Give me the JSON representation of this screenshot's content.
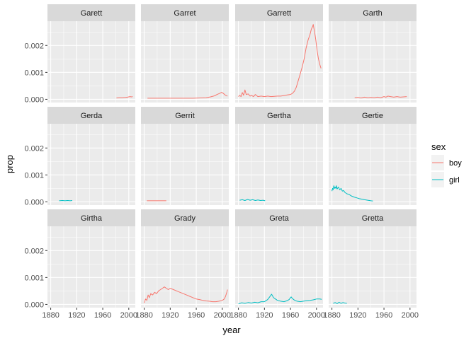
{
  "chart_data": {
    "type": "line",
    "facet_layout": {
      "rows": 3,
      "cols": 4
    },
    "xlabel": "year",
    "ylabel": "prop",
    "xlim": [
      1875,
      2010
    ],
    "ylim": [
      -0.00012,
      0.0029
    ],
    "x_ticks": [
      1880,
      1920,
      1960,
      2000
    ],
    "x_tick_labels": [
      "1880",
      "1920",
      "1960",
      "2000"
    ],
    "y_ticks": [
      0,
      0.001,
      0.002
    ],
    "y_tick_labels": [
      "0.000",
      "0.001",
      "0.002"
    ],
    "grid": true,
    "legend": {
      "title": "sex",
      "placement": "right",
      "entries": [
        {
          "label": "boy",
          "color": "#F8766D"
        },
        {
          "label": "girl",
          "color": "#00BFC4"
        }
      ]
    },
    "colors": {
      "boy": "#F8766D",
      "girl": "#00BFC4",
      "panel_bg": "#EBEBEB",
      "strip_bg": "#D9D9D9",
      "grid": "#FFFFFF"
    },
    "panels": [
      {
        "title": "Garett",
        "series": [
          {
            "sex": "boy",
            "points": [
              [
                1981,
                5e-05
              ],
              [
                1985,
                6e-05
              ],
              [
                1990,
                6e-05
              ],
              [
                1995,
                7e-05
              ],
              [
                1998,
                8e-05
              ],
              [
                2000,
                9e-05
              ],
              [
                2002,
                0.0001
              ],
              [
                2004,
                9e-05
              ],
              [
                2006,
                0.0001
              ]
            ]
          }
        ]
      },
      {
        "title": "Garret",
        "series": [
          {
            "sex": "boy",
            "points": [
              [
                1885,
                4e-05
              ],
              [
                1900,
                4e-05
              ],
              [
                1920,
                4e-05
              ],
              [
                1940,
                4e-05
              ],
              [
                1955,
                4e-05
              ],
              [
                1965,
                5e-05
              ],
              [
                1975,
                6e-05
              ],
              [
                1982,
                9e-05
              ],
              [
                1988,
                0.00013
              ],
              [
                1992,
                0.00018
              ],
              [
                1996,
                0.00022
              ],
              [
                1999,
                0.00026
              ],
              [
                2001,
                0.00023
              ],
              [
                2003,
                0.00019
              ],
              [
                2005,
                0.00015
              ],
              [
                2008,
                0.00012
              ]
            ]
          }
        ]
      },
      {
        "title": "Garrett",
        "series": [
          {
            "sex": "boy",
            "points": [
              [
                1880,
                0.0001
              ],
              [
                1882,
                0.00015
              ],
              [
                1884,
                0.0001
              ],
              [
                1886,
                0.00025
              ],
              [
                1888,
                0.00015
              ],
              [
                1890,
                0.00035
              ],
              [
                1892,
                0.00018
              ],
              [
                1895,
                0.0002
              ],
              [
                1898,
                0.00012
              ],
              [
                1900,
                0.00015
              ],
              [
                1903,
                0.0001
              ],
              [
                1906,
                0.00018
              ],
              [
                1910,
                0.0001
              ],
              [
                1915,
                0.00012
              ],
              [
                1920,
                0.0001
              ],
              [
                1925,
                0.00012
              ],
              [
                1930,
                0.0001
              ],
              [
                1935,
                0.00011
              ],
              [
                1940,
                0.00012
              ],
              [
                1945,
                0.00012
              ],
              [
                1950,
                0.00014
              ],
              [
                1955,
                0.00016
              ],
              [
                1960,
                0.00018
              ],
              [
                1963,
                0.00022
              ],
              [
                1966,
                0.0003
              ],
              [
                1969,
                0.00045
              ],
              [
                1972,
                0.0007
              ],
              [
                1975,
                0.00095
              ],
              [
                1978,
                0.0012
              ],
              [
                1981,
                0.0015
              ],
              [
                1984,
                0.0019
              ],
              [
                1987,
                0.0022
              ],
              [
                1990,
                0.0024
              ],
              [
                1992,
                0.0026
              ],
              [
                1994,
                0.0027
              ],
              [
                1995,
                0.00278
              ],
              [
                1997,
                0.0025
              ],
              [
                1999,
                0.0022
              ],
              [
                2001,
                0.0018
              ],
              [
                2003,
                0.0015
              ],
              [
                2005,
                0.0013
              ],
              [
                2007,
                0.00115
              ]
            ]
          }
        ]
      },
      {
        "title": "Garth",
        "series": [
          {
            "sex": "boy",
            "points": [
              [
                1915,
                6e-05
              ],
              [
                1920,
                7e-05
              ],
              [
                1925,
                5e-05
              ],
              [
                1930,
                8e-05
              ],
              [
                1935,
                6e-05
              ],
              [
                1940,
                7e-05
              ],
              [
                1945,
                6e-05
              ],
              [
                1950,
                8e-05
              ],
              [
                1955,
                6e-05
              ],
              [
                1960,
                0.0001
              ],
              [
                1963,
                8e-05
              ],
              [
                1966,
                0.00012
              ],
              [
                1970,
                0.0001
              ],
              [
                1975,
                8e-05
              ],
              [
                1980,
                0.0001
              ],
              [
                1985,
                8e-05
              ],
              [
                1990,
                9e-05
              ],
              [
                1995,
                0.0001
              ]
            ]
          }
        ]
      },
      {
        "title": "Gerda",
        "series": [
          {
            "sex": "girl",
            "points": [
              [
                1893,
                4e-05
              ],
              [
                1898,
                5e-05
              ],
              [
                1902,
                4e-05
              ],
              [
                1906,
                5e-05
              ],
              [
                1910,
                4e-05
              ],
              [
                1913,
                5e-05
              ]
            ]
          }
        ]
      },
      {
        "title": "Gerrit",
        "series": [
          {
            "sex": "boy",
            "points": [
              [
                1884,
                4e-05
              ],
              [
                1890,
                4e-05
              ],
              [
                1896,
                4e-05
              ],
              [
                1902,
                4e-05
              ],
              [
                1908,
                4e-05
              ],
              [
                1914,
                4e-05
              ]
            ]
          }
        ]
      },
      {
        "title": "Gertha",
        "series": [
          {
            "sex": "girl",
            "points": [
              [
                1882,
                6e-05
              ],
              [
                1886,
                8e-05
              ],
              [
                1890,
                5e-05
              ],
              [
                1894,
                9e-05
              ],
              [
                1898,
                6e-05
              ],
              [
                1902,
                8e-05
              ],
              [
                1906,
                5e-05
              ],
              [
                1910,
                7e-05
              ],
              [
                1914,
                5e-05
              ],
              [
                1918,
                6e-05
              ],
              [
                1921,
                4e-05
              ]
            ]
          }
        ]
      },
      {
        "title": "Gertie",
        "series": [
          {
            "sex": "girl",
            "points": [
              [
                1880,
                0.0004
              ],
              [
                1881,
                0.0005
              ],
              [
                1882,
                0.00045
              ],
              [
                1883,
                0.0006
              ],
              [
                1884,
                0.0005
              ],
              [
                1885,
                0.00055
              ],
              [
                1886,
                0.0005
              ],
              [
                1887,
                0.0006
              ],
              [
                1888,
                0.00048
              ],
              [
                1890,
                0.00055
              ],
              [
                1892,
                0.00045
              ],
              [
                1894,
                0.0005
              ],
              [
                1896,
                0.0004
              ],
              [
                1898,
                0.00042
              ],
              [
                1900,
                0.00035
              ],
              [
                1903,
                0.0003
              ],
              [
                1906,
                0.00028
              ],
              [
                1910,
                0.00022
              ],
              [
                1914,
                0.00018
              ],
              [
                1918,
                0.00015
              ],
              [
                1922,
                0.00012
              ],
              [
                1926,
                0.0001
              ],
              [
                1930,
                8e-05
              ],
              [
                1935,
                6e-05
              ],
              [
                1940,
                4e-05
              ],
              [
                1943,
                3e-05
              ]
            ]
          }
        ]
      },
      {
        "title": "Girtha",
        "series": []
      },
      {
        "title": "Grady",
        "series": [
          {
            "sex": "boy",
            "points": [
              [
                1880,
                5e-05
              ],
              [
                1882,
                0.0002
              ],
              [
                1884,
                0.00015
              ],
              [
                1886,
                0.00035
              ],
              [
                1888,
                0.00025
              ],
              [
                1890,
                0.0004
              ],
              [
                1893,
                0.00035
              ],
              [
                1896,
                0.00045
              ],
              [
                1899,
                0.0004
              ],
              [
                1902,
                0.0005
              ],
              [
                1905,
                0.00055
              ],
              [
                1908,
                0.0006
              ],
              [
                1911,
                0.00065
              ],
              [
                1914,
                0.0006
              ],
              [
                1917,
                0.00055
              ],
              [
                1920,
                0.0006
              ],
              [
                1925,
                0.00055
              ],
              [
                1930,
                0.0005
              ],
              [
                1935,
                0.00045
              ],
              [
                1940,
                0.0004
              ],
              [
                1945,
                0.00035
              ],
              [
                1950,
                0.0003
              ],
              [
                1955,
                0.00025
              ],
              [
                1960,
                0.0002
              ],
              [
                1965,
                0.00018
              ],
              [
                1970,
                0.00015
              ],
              [
                1975,
                0.00013
              ],
              [
                1980,
                0.00012
              ],
              [
                1985,
                0.0001
              ],
              [
                1990,
                0.0001
              ],
              [
                1995,
                0.00012
              ],
              [
                2000,
                0.00015
              ],
              [
                2003,
                0.0002
              ],
              [
                2005,
                0.0003
              ],
              [
                2007,
                0.00045
              ],
              [
                2008,
                0.00055
              ]
            ]
          }
        ]
      },
      {
        "title": "Greta",
        "series": [
          {
            "sex": "girl",
            "points": [
              [
                1880,
                2e-05
              ],
              [
                1885,
                6e-05
              ],
              [
                1890,
                4e-05
              ],
              [
                1895,
                7e-05
              ],
              [
                1900,
                5e-05
              ],
              [
                1905,
                8e-05
              ],
              [
                1910,
                6e-05
              ],
              [
                1915,
                0.0001
              ],
              [
                1920,
                0.0001
              ],
              [
                1925,
                0.00018
              ],
              [
                1928,
                0.00028
              ],
              [
                1931,
                0.00038
              ],
              [
                1934,
                0.00025
              ],
              [
                1937,
                0.0002
              ],
              [
                1940,
                0.00015
              ],
              [
                1945,
                0.00012
              ],
              [
                1950,
                0.0001
              ],
              [
                1955,
                0.00014
              ],
              [
                1958,
                0.00018
              ],
              [
                1961,
                0.00028
              ],
              [
                1963,
                0.00022
              ],
              [
                1966,
                0.00016
              ],
              [
                1970,
                0.00012
              ],
              [
                1975,
                0.0001
              ],
              [
                1980,
                0.00012
              ],
              [
                1985,
                0.00014
              ],
              [
                1990,
                0.00015
              ],
              [
                1995,
                0.00017
              ],
              [
                2000,
                0.0002
              ],
              [
                2005,
                0.0002
              ],
              [
                2008,
                0.00019
              ]
            ]
          }
        ]
      },
      {
        "title": "Gretta",
        "series": [
          {
            "sex": "girl",
            "points": [
              [
                1882,
                4e-05
              ],
              [
                1885,
                7e-05
              ],
              [
                1888,
                3e-05
              ],
              [
                1891,
                8e-05
              ],
              [
                1894,
                4e-05
              ],
              [
                1897,
                7e-05
              ],
              [
                1900,
                5e-05
              ],
              [
                1903,
                4e-05
              ]
            ]
          }
        ]
      }
    ]
  }
}
